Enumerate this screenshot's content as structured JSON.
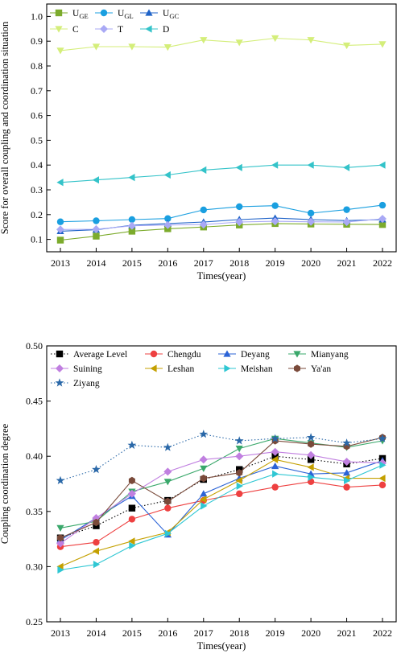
{
  "chart_data": [
    {
      "type": "line",
      "ylabel": "Score for overall coupling and coordination situation",
      "xlabel": "Times(year)",
      "x": [
        2013,
        2014,
        2015,
        2016,
        2017,
        2018,
        2019,
        2020,
        2021,
        2022
      ],
      "ylim": [
        0.05,
        1.05
      ],
      "yticks": [
        "0.1",
        "0.2",
        "0.3",
        "0.4",
        "0.5",
        "0.6",
        "0.7",
        "0.8",
        "0.9",
        "1.0"
      ],
      "series": [
        {
          "name": "U",
          "sub": "GE",
          "color": "#7cab2c",
          "marker": "square",
          "values": [
            0.097,
            0.113,
            0.133,
            0.143,
            0.15,
            0.158,
            0.164,
            0.162,
            0.161,
            0.16
          ]
        },
        {
          "name": "U",
          "sub": "GL",
          "color": "#1a9fe0",
          "marker": "circle",
          "values": [
            0.171,
            0.175,
            0.18,
            0.184,
            0.219,
            0.232,
            0.236,
            0.206,
            0.22,
            0.238
          ]
        },
        {
          "name": "U",
          "sub": "GC",
          "color": "#1f63c8",
          "marker": "triangle-up",
          "values": [
            0.133,
            0.139,
            0.157,
            0.164,
            0.17,
            0.18,
            0.186,
            0.18,
            0.176,
            0.18
          ]
        },
        {
          "name": "C",
          "sub": "",
          "color": "#d4ee7a",
          "marker": "triangle-down",
          "values": [
            0.862,
            0.878,
            0.878,
            0.876,
            0.905,
            0.895,
            0.912,
            0.905,
            0.883,
            0.888
          ]
        },
        {
          "name": "T",
          "sub": "",
          "color": "#a9a9f5",
          "marker": "diamond",
          "values": [
            0.14,
            0.141,
            0.155,
            0.158,
            0.16,
            0.17,
            0.173,
            0.171,
            0.17,
            0.183
          ]
        },
        {
          "name": "D",
          "sub": "",
          "color": "#34c3c9",
          "marker": "triangle-left",
          "values": [
            0.33,
            0.34,
            0.35,
            0.36,
            0.38,
            0.39,
            0.4,
            0.4,
            0.39,
            0.4
          ]
        }
      ],
      "legend": "top-left",
      "grid": false
    },
    {
      "type": "line",
      "ylabel": "Coupling coordination degree",
      "xlabel": "Times(year)",
      "x": [
        2013,
        2014,
        2015,
        2016,
        2017,
        2018,
        2019,
        2020,
        2021,
        2022
      ],
      "ylim": [
        0.25,
        0.5
      ],
      "yticks": [
        "0.25",
        "0.30",
        "0.35",
        "0.40",
        "0.45",
        "0.50"
      ],
      "series": [
        {
          "name": "Average Level",
          "color": "#000000",
          "marker": "square",
          "dash": "dotted",
          "values": [
            0.326,
            0.337,
            0.353,
            0.36,
            0.379,
            0.388,
            0.4,
            0.397,
            0.393,
            0.398
          ]
        },
        {
          "name": "Chengdu",
          "color": "#ee4040",
          "marker": "circle",
          "values": [
            0.318,
            0.322,
            0.343,
            0.353,
            0.36,
            0.366,
            0.372,
            0.377,
            0.372,
            0.374
          ]
        },
        {
          "name": "Deyang",
          "color": "#2b63d6",
          "marker": "triangle-up",
          "values": [
            0.324,
            0.344,
            0.364,
            0.329,
            0.366,
            0.38,
            0.391,
            0.384,
            0.385,
            0.396
          ]
        },
        {
          "name": "Mianyang",
          "color": "#3aa86b",
          "marker": "triangle-down",
          "values": [
            0.335,
            0.341,
            0.368,
            0.377,
            0.389,
            0.407,
            0.416,
            0.412,
            0.408,
            0.414
          ]
        },
        {
          "name": "Suining",
          "color": "#c07fe0",
          "marker": "diamond",
          "values": [
            0.321,
            0.344,
            0.366,
            0.386,
            0.397,
            0.4,
            0.404,
            0.401,
            0.395,
            0.394
          ]
        },
        {
          "name": "Leshan",
          "color": "#c4a000",
          "marker": "triangle-left",
          "values": [
            0.3,
            0.314,
            0.323,
            0.331,
            0.361,
            0.378,
            0.397,
            0.39,
            0.38,
            0.38
          ]
        },
        {
          "name": "Meishan",
          "color": "#2fc7d3",
          "marker": "triangle-right",
          "values": [
            0.297,
            0.302,
            0.319,
            0.33,
            0.355,
            0.373,
            0.384,
            0.381,
            0.378,
            0.392
          ]
        },
        {
          "name": "Ya'an",
          "color": "#7a4a3a",
          "marker": "hexagon",
          "values": [
            0.326,
            0.34,
            0.378,
            0.359,
            0.38,
            0.385,
            0.414,
            0.411,
            0.409,
            0.417
          ]
        },
        {
          "name": "Ziyang",
          "color": "#2a68a8",
          "marker": "star",
          "dash": "dotted",
          "values": [
            0.378,
            0.388,
            0.41,
            0.408,
            0.42,
            0.414,
            0.416,
            0.417,
            0.412,
            0.416
          ]
        }
      ],
      "legend": "top",
      "grid": false
    }
  ]
}
